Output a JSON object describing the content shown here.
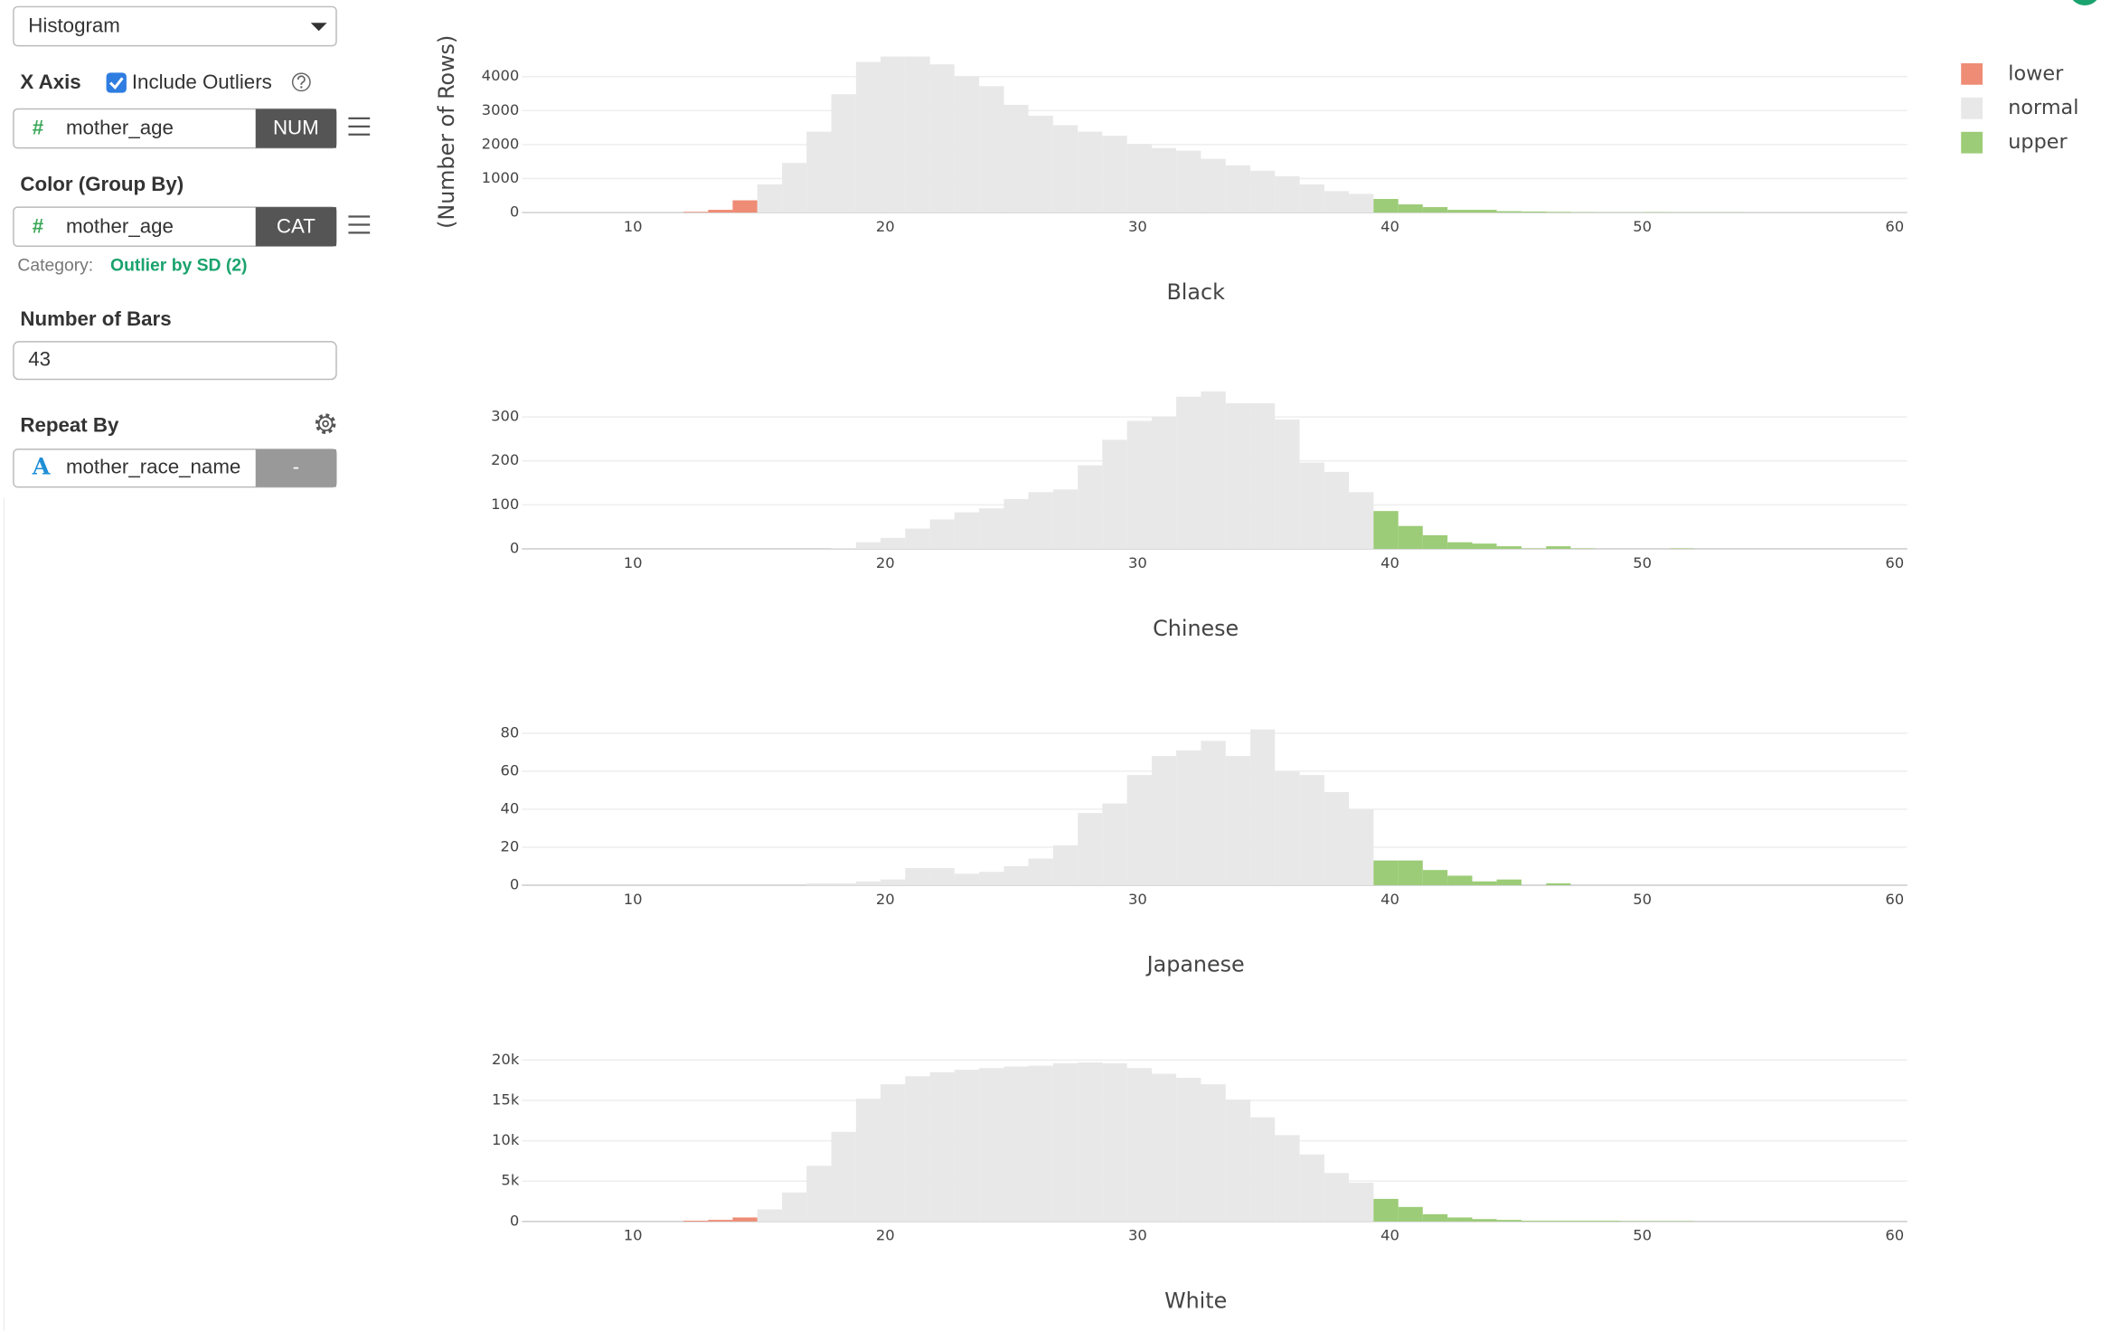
{
  "panel": {
    "chart_type": "Histogram",
    "x_axis": {
      "label": "X Axis",
      "option": "Include Outliers",
      "icon": "#",
      "column": "mother_age",
      "type": "NUM"
    },
    "color_by": {
      "label": "Color (Group By)",
      "icon": "#",
      "column": "mother_age",
      "type": "CAT",
      "category_label": "Category:",
      "category_value": "Outlier by SD (2)"
    },
    "bars": {
      "label": "Number of Bars",
      "value": 43
    },
    "repeat_by": {
      "label": "Repeat By",
      "icon": "A",
      "column": "mother_race_name",
      "type": "-"
    }
  },
  "chart_data": [
    {
      "type": "histogram",
      "title": "Black",
      "ylabel": "(Number of Rows)",
      "legend": "top-right",
      "bins": [
        12.0,
        12.98,
        13.95,
        14.93,
        15.91,
        16.88,
        17.86,
        18.84,
        19.81,
        20.79,
        21.77,
        22.74,
        23.72,
        24.7,
        25.67,
        26.65,
        27.63,
        28.6,
        29.58,
        30.56,
        31.53,
        32.51,
        33.49,
        34.47,
        35.44,
        36.42,
        37.4,
        38.37,
        39.35,
        40.33,
        41.3,
        42.28,
        43.26,
        44.23,
        45.21,
        46.19,
        47.16,
        48.14,
        49.12,
        50.09,
        51.07,
        52.05,
        53.02,
        54.0
      ],
      "xlim": [
        5.6,
        60.5
      ],
      "xticks": [
        10,
        20,
        30,
        40,
        50,
        60
      ],
      "ylim": [
        0,
        4750
      ],
      "yticks": [
        0,
        1000,
        2000,
        3000,
        4000
      ],
      "grid": true,
      "series": [
        {
          "name": "lower",
          "color": "#ef8c75",
          "values": [
            20,
            80,
            360,
            0,
            0,
            0,
            0,
            0,
            0,
            0,
            0,
            0,
            0,
            0,
            0,
            0,
            0,
            0,
            0,
            0,
            0,
            0,
            0,
            0,
            0,
            0,
            0,
            0,
            0,
            0,
            0,
            0,
            0,
            0,
            0,
            0,
            0,
            0,
            0,
            0,
            0,
            0,
            0
          ]
        },
        {
          "name": "normal",
          "color": "#e8e8e8",
          "values": [
            0,
            0,
            0,
            830,
            1460,
            2380,
            3480,
            4430,
            4590,
            4590,
            4360,
            4000,
            3720,
            3170,
            2850,
            2570,
            2380,
            2260,
            2020,
            1900,
            1820,
            1580,
            1390,
            1230,
            1070,
            830,
            630,
            550,
            0,
            0,
            0,
            0,
            0,
            0,
            0,
            0,
            0,
            0,
            0,
            0,
            0,
            0,
            0
          ]
        },
        {
          "name": "upper",
          "color": "#9ccc77",
          "values": [
            0,
            0,
            0,
            0,
            0,
            0,
            0,
            0,
            0,
            0,
            0,
            0,
            0,
            0,
            0,
            0,
            0,
            0,
            0,
            0,
            0,
            0,
            0,
            0,
            0,
            0,
            0,
            0,
            400,
            240,
            160,
            80,
            80,
            40,
            30,
            20,
            10,
            5,
            5,
            10,
            5,
            5,
            5
          ]
        }
      ]
    },
    {
      "type": "histogram",
      "title": "Chinese",
      "bins": [
        12.0,
        12.98,
        13.95,
        14.93,
        15.91,
        16.88,
        17.86,
        18.84,
        19.81,
        20.79,
        21.77,
        22.74,
        23.72,
        24.7,
        25.67,
        26.65,
        27.63,
        28.6,
        29.58,
        30.56,
        31.53,
        32.51,
        33.49,
        34.47,
        35.44,
        36.42,
        37.4,
        38.37,
        39.35,
        40.33,
        41.3,
        42.28,
        43.26,
        44.23,
        45.21,
        46.19,
        47.16,
        48.14,
        49.12,
        50.09,
        51.07,
        52.05,
        53.02,
        54.0
      ],
      "xlim": [
        5.6,
        60.5
      ],
      "xticks": [
        10,
        20,
        30,
        40,
        50,
        60
      ],
      "ylim": [
        0,
        367
      ],
      "yticks": [
        0,
        100,
        200,
        300
      ],
      "grid": true,
      "series": [
        {
          "color": "#ef8c75",
          "values": [
            0,
            0,
            0,
            0,
            0,
            0,
            0,
            0,
            0,
            0,
            0,
            0,
            0,
            0,
            0,
            0,
            0,
            0,
            0,
            0,
            0,
            0,
            0,
            0,
            0,
            0,
            0,
            0,
            0,
            0,
            0,
            0,
            0,
            0,
            0,
            0,
            0,
            0,
            0,
            0,
            0,
            0,
            0
          ]
        },
        {
          "color": "#e8e8e8",
          "values": [
            0,
            0,
            0,
            0,
            0,
            0,
            2,
            15,
            25,
            46,
            67,
            83,
            92,
            113,
            129,
            135,
            190,
            248,
            291,
            300,
            346,
            358,
            331,
            331,
            294,
            196,
            175,
            129,
            0,
            0,
            0,
            0,
            0,
            0,
            0,
            0,
            0,
            0,
            0,
            0,
            0,
            0,
            0
          ]
        },
        {
          "color": "#9ccc77",
          "values": [
            0,
            0,
            0,
            0,
            0,
            0,
            0,
            0,
            0,
            0,
            0,
            0,
            0,
            0,
            0,
            0,
            0,
            0,
            0,
            0,
            0,
            0,
            0,
            0,
            0,
            0,
            0,
            0,
            86,
            52,
            31,
            15,
            12,
            6,
            1,
            6,
            1,
            0,
            0,
            0,
            1,
            0,
            0
          ]
        }
      ]
    },
    {
      "type": "histogram",
      "title": "Japanese",
      "bins": [
        12.0,
        12.98,
        13.95,
        14.93,
        15.91,
        16.88,
        17.86,
        18.84,
        19.81,
        20.79,
        21.77,
        22.74,
        23.72,
        24.7,
        25.67,
        26.65,
        27.63,
        28.6,
        29.58,
        30.56,
        31.53,
        32.51,
        33.49,
        34.47,
        35.44,
        36.42,
        37.4,
        38.37,
        39.35,
        40.33,
        41.3,
        42.28,
        43.26,
        44.23,
        45.21,
        46.19,
        47.16,
        48.14,
        49.12,
        50.09,
        51.07,
        52.05,
        53.02,
        54.0
      ],
      "xlim": [
        5.6,
        60.5
      ],
      "xticks": [
        10,
        20,
        30,
        40,
        50,
        60
      ],
      "ylim": [
        0,
        85
      ],
      "yticks": [
        0,
        20,
        40,
        60,
        80
      ],
      "grid": true,
      "series": [
        {
          "color": "#ef8c75",
          "values": [
            0,
            0,
            0,
            0,
            0,
            0,
            0,
            0,
            0,
            0,
            0,
            0,
            0,
            0,
            0,
            0,
            0,
            0,
            0,
            0,
            0,
            0,
            0,
            0,
            0,
            0,
            0,
            0,
            0,
            0,
            0,
            0,
            0,
            0,
            0,
            0,
            0,
            0,
            0,
            0,
            0,
            0,
            0
          ]
        },
        {
          "color": "#e8e8e8",
          "values": [
            0,
            0,
            0,
            0,
            0,
            1,
            1,
            2,
            3,
            9,
            9,
            6,
            7,
            10,
            14,
            21,
            38,
            43,
            58,
            68,
            71,
            76,
            68,
            82,
            60,
            58,
            49,
            40,
            0,
            0,
            0,
            0,
            0,
            0,
            0,
            0,
            0,
            0,
            0,
            0,
            0,
            0,
            0
          ]
        },
        {
          "color": "#9ccc77",
          "values": [
            0,
            0,
            0,
            0,
            0,
            0,
            0,
            0,
            0,
            0,
            0,
            0,
            0,
            0,
            0,
            0,
            0,
            0,
            0,
            0,
            0,
            0,
            0,
            0,
            0,
            0,
            0,
            0,
            13,
            13,
            8,
            5,
            2,
            3,
            0,
            1,
            0,
            0,
            0,
            0,
            0,
            0,
            0
          ]
        }
      ]
    },
    {
      "type": "histogram",
      "title": "White",
      "bins": [
        12.0,
        12.98,
        13.95,
        14.93,
        15.91,
        16.88,
        17.86,
        18.84,
        19.81,
        20.79,
        21.77,
        22.74,
        23.72,
        24.7,
        25.67,
        26.65,
        27.63,
        28.6,
        29.58,
        30.56,
        31.53,
        32.51,
        33.49,
        34.47,
        35.44,
        36.42,
        37.4,
        38.37,
        39.35,
        40.33,
        41.3,
        42.28,
        43.26,
        44.23,
        45.21,
        46.19,
        47.16,
        48.14,
        49.12,
        50.09,
        51.07,
        52.05,
        53.02,
        54.0
      ],
      "xlim": [
        5.6,
        60.5
      ],
      "xticks": [
        10,
        20,
        30,
        40,
        50,
        60
      ],
      "ylim": [
        0,
        20000
      ],
      "yticks": [
        0,
        {
          "value": 5000,
          "label": "5k"
        },
        {
          "value": 10000,
          "label": "10k"
        },
        {
          "value": 15000,
          "label": "15k"
        },
        {
          "value": 20000,
          "label": "20k"
        }
      ],
      "grid": true,
      "series": [
        {
          "color": "#ef8c75",
          "values": [
            100,
            200,
            500,
            0,
            0,
            0,
            0,
            0,
            0,
            0,
            0,
            0,
            0,
            0,
            0,
            0,
            0,
            0,
            0,
            0,
            0,
            0,
            0,
            0,
            0,
            0,
            0,
            0,
            0,
            0,
            0,
            0,
            0,
            0,
            0,
            0,
            0,
            0,
            0,
            0,
            0,
            0,
            0
          ]
        },
        {
          "color": "#e8e8e8",
          "values": [
            0,
            0,
            0,
            1500,
            3600,
            6900,
            11100,
            15200,
            17000,
            18000,
            18500,
            18800,
            19000,
            19200,
            19300,
            19600,
            19700,
            19600,
            19000,
            18300,
            17800,
            17000,
            15100,
            12900,
            10700,
            8300,
            6000,
            4800,
            0,
            0,
            0,
            0,
            0,
            0,
            0,
            0,
            0,
            0,
            0,
            0,
            0,
            0,
            0
          ]
        },
        {
          "color": "#9ccc77",
          "values": [
            0,
            0,
            0,
            0,
            0,
            0,
            0,
            0,
            0,
            0,
            0,
            0,
            0,
            0,
            0,
            0,
            0,
            0,
            0,
            0,
            0,
            0,
            0,
            0,
            0,
            0,
            0,
            0,
            2800,
            1800,
            900,
            500,
            300,
            200,
            100,
            100,
            100,
            100,
            50,
            50,
            50,
            0,
            0
          ]
        }
      ]
    }
  ]
}
